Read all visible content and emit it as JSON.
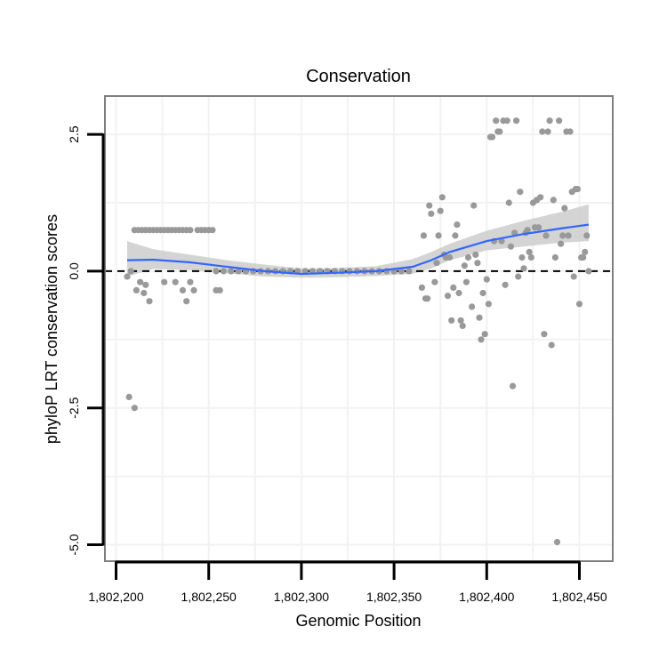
{
  "chart_data": {
    "type": "scatter",
    "title": "Conservation",
    "xlabel": "Genomic Position",
    "ylabel": "phyloP LRT conservation scores",
    "xlim": [
      1802194,
      1802468
    ],
    "ylim": [
      -5.3,
      3.2
    ],
    "x_ticks": [
      1802200,
      1802250,
      1802300,
      1802350,
      1802400,
      1802450
    ],
    "x_tick_labels": [
      "1,802,200",
      "1,802,250",
      "1,802,300",
      "1,802,350",
      "1,802,400",
      "1,802,450"
    ],
    "y_ticks": [
      -5.0,
      -2.5,
      0.0,
      2.5
    ],
    "y_tick_labels": [
      "-5.0",
      "-2.5",
      "0.0",
      "2.5"
    ],
    "grid": true,
    "reference_line": {
      "y": 0,
      "style": "dashed",
      "color": "#000000"
    },
    "colors": {
      "points": "#999999",
      "smooth": "#3366ff",
      "ribbon": "#cccccc",
      "frame": "#7f7f7f",
      "grid": "#f2f2f2"
    },
    "points": [
      [
        1802206,
        -0.1
      ],
      [
        1802207,
        -2.3
      ],
      [
        1802208,
        0.0
      ],
      [
        1802210,
        -2.5
      ],
      [
        1802211,
        -0.35
      ],
      [
        1802213,
        -0.2
      ],
      [
        1802215,
        -0.4
      ],
      [
        1802216,
        -0.25
      ],
      [
        1802218,
        -0.55
      ],
      [
        1802226,
        -0.2
      ],
      [
        1802232,
        -0.2
      ],
      [
        1802236,
        -0.35
      ],
      [
        1802238,
        -0.55
      ],
      [
        1802240,
        -0.2
      ],
      [
        1802242,
        -0.35
      ],
      [
        1802254,
        -0.35
      ],
      [
        1802256,
        -0.35
      ],
      [
        1802210,
        0.75
      ],
      [
        1802212,
        0.75
      ],
      [
        1802214,
        0.75
      ],
      [
        1802216,
        0.75
      ],
      [
        1802218,
        0.75
      ],
      [
        1802220,
        0.75
      ],
      [
        1802222,
        0.75
      ],
      [
        1802224,
        0.75
      ],
      [
        1802226,
        0.75
      ],
      [
        1802228,
        0.75
      ],
      [
        1802230,
        0.75
      ],
      [
        1802232,
        0.75
      ],
      [
        1802234,
        0.75
      ],
      [
        1802236,
        0.75
      ],
      [
        1802238,
        0.75
      ],
      [
        1802240,
        0.75
      ],
      [
        1802244,
        0.75
      ],
      [
        1802246,
        0.75
      ],
      [
        1802248,
        0.75
      ],
      [
        1802250,
        0.75
      ],
      [
        1802252,
        0.75
      ],
      [
        1802254,
        0.0
      ],
      [
        1802258,
        0.0
      ],
      [
        1802262,
        0.0
      ],
      [
        1802266,
        0.0
      ],
      [
        1802270,
        0.0
      ],
      [
        1802274,
        0.0
      ],
      [
        1802278,
        0.0
      ],
      [
        1802282,
        0.0
      ],
      [
        1802286,
        0.0
      ],
      [
        1802290,
        0.0
      ],
      [
        1802294,
        0.0
      ],
      [
        1802298,
        0.0
      ],
      [
        1802302,
        0.0
      ],
      [
        1802306,
        0.0
      ],
      [
        1802310,
        0.0
      ],
      [
        1802314,
        0.0
      ],
      [
        1802318,
        0.0
      ],
      [
        1802322,
        0.0
      ],
      [
        1802326,
        0.0
      ],
      [
        1802330,
        0.0
      ],
      [
        1802334,
        0.0
      ],
      [
        1802338,
        0.0
      ],
      [
        1802342,
        0.0
      ],
      [
        1802346,
        0.0
      ],
      [
        1802350,
        0.0
      ],
      [
        1802354,
        0.0
      ],
      [
        1802358,
        0.0
      ],
      [
        1802365,
        -0.3
      ],
      [
        1802366,
        0.65
      ],
      [
        1802367,
        -0.5
      ],
      [
        1802368,
        -0.5
      ],
      [
        1802369,
        1.2
      ],
      [
        1802370,
        1.05
      ],
      [
        1802372,
        -0.2
      ],
      [
        1802373,
        0.15
      ],
      [
        1802374,
        0.65
      ],
      [
        1802375,
        1.1
      ],
      [
        1802376,
        1.35
      ],
      [
        1802377,
        0.3
      ],
      [
        1802378,
        0.25
      ],
      [
        1802379,
        -0.45
      ],
      [
        1802380,
        0.25
      ],
      [
        1802381,
        -0.9
      ],
      [
        1802382,
        -0.3
      ],
      [
        1802383,
        0.65
      ],
      [
        1802384,
        0.85
      ],
      [
        1802385,
        -0.4
      ],
      [
        1802386,
        -0.9
      ],
      [
        1802387,
        -1.0
      ],
      [
        1802388,
        0.1
      ],
      [
        1802389,
        -0.2
      ],
      [
        1802390,
        0.25
      ],
      [
        1802392,
        -0.65
      ],
      [
        1802393,
        1.2
      ],
      [
        1802394,
        0.3
      ],
      [
        1802395,
        0.15
      ],
      [
        1802396,
        -0.85
      ],
      [
        1802397,
        -1.25
      ],
      [
        1802398,
        -0.4
      ],
      [
        1802399,
        -1.15
      ],
      [
        1802400,
        -0.15
      ],
      [
        1802401,
        -0.6
      ],
      [
        1802402,
        2.45
      ],
      [
        1802403,
        2.45
      ],
      [
        1802404,
        0.55
      ],
      [
        1802405,
        2.75
      ],
      [
        1802406,
        2.55
      ],
      [
        1802407,
        2.55
      ],
      [
        1802408,
        0.55
      ],
      [
        1802409,
        2.75
      ],
      [
        1802410,
        -0.25
      ],
      [
        1802411,
        2.75
      ],
      [
        1802412,
        1.25
      ],
      [
        1802413,
        0.45
      ],
      [
        1802414,
        -2.1
      ],
      [
        1802415,
        0.7
      ],
      [
        1802416,
        2.75
      ],
      [
        1802417,
        -0.1
      ],
      [
        1802418,
        1.45
      ],
      [
        1802419,
        0.25
      ],
      [
        1802420,
        0.05
      ],
      [
        1802421,
        0.7
      ],
      [
        1802422,
        0.75
      ],
      [
        1802423,
        0.35
      ],
      [
        1802424,
        0.25
      ],
      [
        1802425,
        1.25
      ],
      [
        1802426,
        0.8
      ],
      [
        1802427,
        1.3
      ],
      [
        1802428,
        0.8
      ],
      [
        1802429,
        1.35
      ],
      [
        1802430,
        2.55
      ],
      [
        1802431,
        -1.15
      ],
      [
        1802432,
        0.65
      ],
      [
        1802433,
        2.55
      ],
      [
        1802434,
        2.75
      ],
      [
        1802435,
        -1.35
      ],
      [
        1802436,
        1.3
      ],
      [
        1802437,
        0.25
      ],
      [
        1802438,
        -4.95
      ],
      [
        1802439,
        2.75
      ],
      [
        1802440,
        0.5
      ],
      [
        1802441,
        0.65
      ],
      [
        1802442,
        1.15
      ],
      [
        1802443,
        2.55
      ],
      [
        1802444,
        0.65
      ],
      [
        1802445,
        2.55
      ],
      [
        1802446,
        1.45
      ],
      [
        1802447,
        -0.1
      ],
      [
        1802448,
        1.5
      ],
      [
        1802449,
        1.5
      ],
      [
        1802450,
        -0.6
      ],
      [
        1802451,
        0.25
      ],
      [
        1802452,
        0.25
      ],
      [
        1802453,
        0.35
      ],
      [
        1802454,
        0.65
      ],
      [
        1802455,
        0.0
      ]
    ],
    "smooth": {
      "x": [
        1802206,
        1802220,
        1802240,
        1802260,
        1802280,
        1802300,
        1802320,
        1802340,
        1802360,
        1802370,
        1802380,
        1802400,
        1802420,
        1802440,
        1802455
      ],
      "y": [
        0.2,
        0.21,
        0.16,
        0.08,
        0.0,
        -0.05,
        -0.03,
        0.0,
        0.08,
        0.2,
        0.35,
        0.55,
        0.68,
        0.78,
        0.85
      ],
      "lower": [
        -0.1,
        0.04,
        0.02,
        -0.04,
        -0.1,
        -0.12,
        -0.11,
        -0.09,
        -0.05,
        0.05,
        0.2,
        0.38,
        0.45,
        0.52,
        0.55
      ],
      "upper": [
        0.55,
        0.4,
        0.3,
        0.2,
        0.12,
        0.05,
        0.06,
        0.09,
        0.22,
        0.35,
        0.5,
        0.74,
        0.92,
        1.08,
        1.22
      ]
    }
  }
}
